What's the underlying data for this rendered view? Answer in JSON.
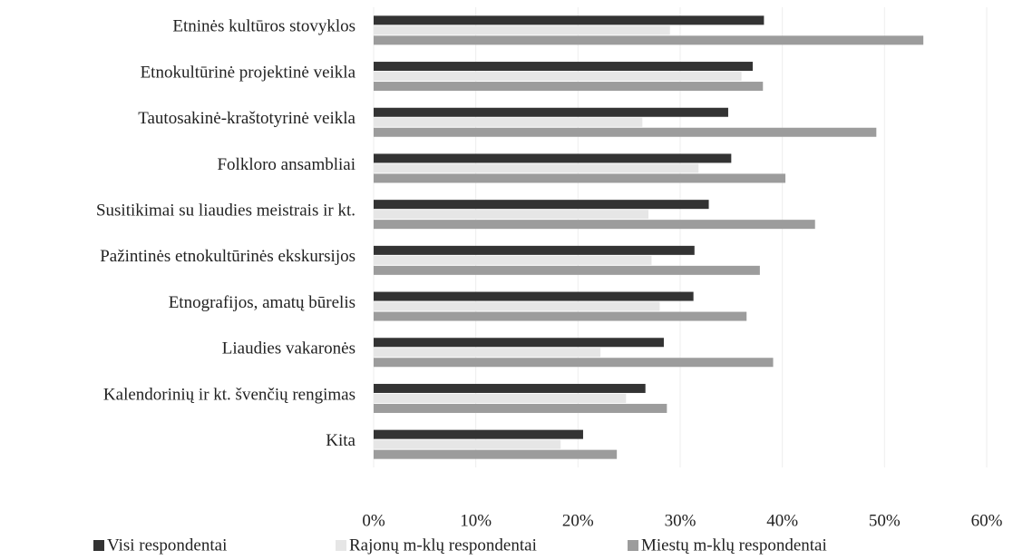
{
  "chart_data": {
    "type": "barh",
    "categories": [
      "Etninės kultūros stovyklos",
      "Etnokultūrinė projektinė veikla",
      "Tautosakinė-kraštotyrinė veikla",
      "Folkloro ansambliai",
      "Susitikimai su liaudies meistrais ir kt.",
      "Pažintinės etnokultūrinės ekskursijos",
      "Etnografijos, amatų būrelis",
      "Liaudies vakaronės",
      "Kalendorinių ir kt. švenčių rengimas",
      "Kita"
    ],
    "series": [
      {
        "name": "Visi respondentai",
        "color": "#333333",
        "values": [
          38.2,
          37.1,
          34.7,
          35,
          32.8,
          31.4,
          31.3,
          28.4,
          26.6,
          20.5
        ]
      },
      {
        "name": "Rajonų  m-klų respondentai",
        "color": "#e6e6e6",
        "values": [
          29,
          36,
          26.3,
          31.8,
          26.9,
          27.2,
          28,
          22.2,
          24.7,
          18.3
        ]
      },
      {
        "name": "Miestų m-klų respondentai",
        "color": "#9c9c9c",
        "values": [
          53.8,
          38.1,
          49.2,
          40.3,
          43.2,
          37.8,
          36.5,
          39.1,
          28.7,
          23.8
        ]
      }
    ],
    "xlim": [
      0,
      60
    ],
    "xticks": [
      {
        "value": 0,
        "label": "0%"
      },
      {
        "value": 10,
        "label": "10%"
      },
      {
        "value": 20,
        "label": "20%"
      },
      {
        "value": 30,
        "label": "30%"
      },
      {
        "value": 40,
        "label": "40%"
      },
      {
        "value": 50,
        "label": "50%"
      },
      {
        "value": 60,
        "label": "60%"
      }
    ],
    "grid": true
  }
}
